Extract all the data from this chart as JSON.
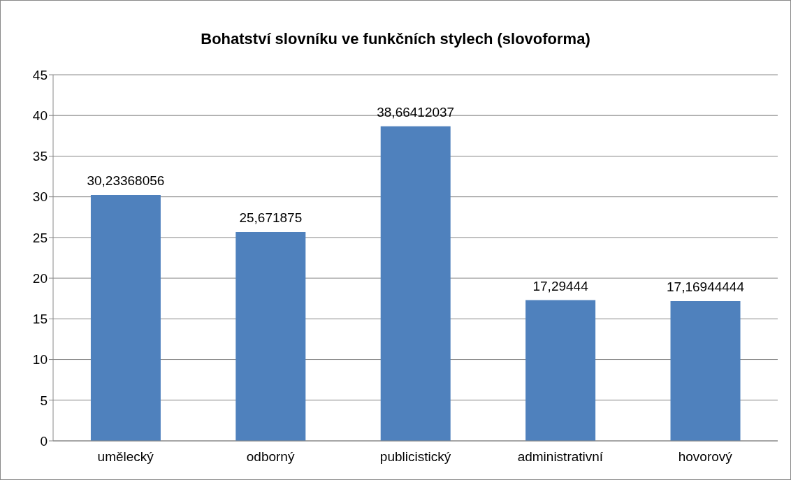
{
  "chart_data": {
    "type": "bar",
    "title": "Bohatství slovníku ve funkčních stylech (slovoforma)",
    "categories": [
      "umělecký",
      "odborný",
      "publicistický",
      "administrativní",
      "hovorový"
    ],
    "values": [
      30.23368056,
      25.671875,
      38.66412037,
      17.29444,
      17.16944444
    ],
    "value_labels": [
      "30,23368056",
      "25,671875",
      "38,66412037",
      "17,29444",
      "17,16944444"
    ],
    "color": "#4f81bd",
    "ylim": [
      0,
      45
    ],
    "yticks": [
      0,
      5,
      10,
      15,
      20,
      25,
      30,
      35,
      40,
      45
    ],
    "grid": "y",
    "legend": false
  }
}
